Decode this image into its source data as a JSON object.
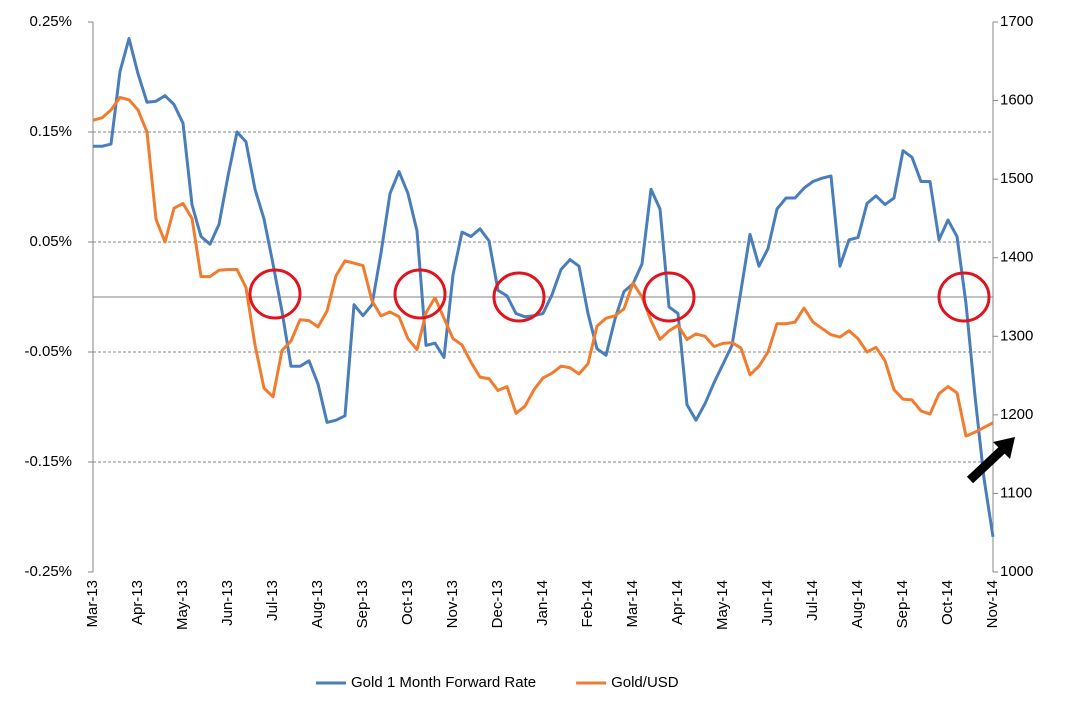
{
  "chart_data": {
    "type": "line",
    "categories": [
      "Mar-13",
      null,
      null,
      null,
      null,
      "Apr-13",
      null,
      null,
      null,
      null,
      "May-13",
      null,
      null,
      null,
      null,
      "Jun-13",
      null,
      null,
      null,
      null,
      "Jul-13",
      null,
      null,
      null,
      null,
      "Aug-13",
      null,
      null,
      null,
      null,
      "Sep-13",
      null,
      null,
      null,
      null,
      "Oct-13",
      null,
      null,
      null,
      null,
      "Nov-13",
      null,
      null,
      null,
      null,
      "Dec-13",
      null,
      null,
      null,
      null,
      "Jan-14",
      null,
      null,
      null,
      null,
      "Feb-14",
      null,
      null,
      null,
      null,
      "Mar-14",
      null,
      null,
      null,
      null,
      "Apr-14",
      null,
      null,
      null,
      null,
      "May-14",
      null,
      null,
      null,
      null,
      "Jun-14",
      null,
      null,
      null,
      null,
      "Jul-14",
      null,
      null,
      null,
      null,
      "Aug-14",
      null,
      null,
      null,
      null,
      "Sep-14",
      null,
      null,
      null,
      null,
      "Oct-14",
      null,
      null,
      null,
      null,
      "Nov-14"
    ],
    "series": [
      {
        "name": "Gold 1 Month Forward Rate",
        "color": "#4a7ebb",
        "values": [
          0.137,
          0.137,
          0.139,
          0.205,
          0.235,
          0.203,
          0.177,
          0.178,
          0.183,
          0.175,
          0.158,
          0.084,
          0.055,
          0.048,
          0.066,
          0.11,
          0.15,
          0.141,
          0.098,
          0.071,
          0.03,
          -0.013,
          -0.063,
          -0.063,
          -0.058,
          -0.079,
          -0.114,
          -0.112,
          -0.108,
          -0.007,
          -0.017,
          -0.007,
          0.04,
          0.094,
          0.114,
          0.094,
          0.06,
          -0.044,
          -0.042,
          -0.055,
          0.02,
          0.059,
          0.055,
          0.062,
          0.051,
          0.006,
          0.001,
          -0.015,
          -0.018,
          -0.017,
          -0.015,
          0.002,
          0.025,
          0.034,
          0.028,
          -0.015,
          -0.047,
          -0.053,
          -0.02,
          0.005,
          0.012,
          0.03,
          0.098,
          0.08,
          -0.009,
          -0.015,
          -0.098,
          -0.112,
          -0.097,
          -0.078,
          -0.061,
          -0.044,
          0.006,
          0.057,
          0.028,
          0.044,
          0.08,
          0.09,
          0.09,
          0.099,
          0.105,
          0.108,
          0.11,
          0.028,
          0.052,
          0.054,
          0.085,
          0.092,
          0.084,
          0.09,
          0.133,
          0.127,
          0.105,
          0.105,
          0.052,
          0.07,
          0.055,
          -0.006,
          -0.09,
          -0.165,
          -0.218
        ]
      },
      {
        "name": "Gold/USD",
        "color": "#f07d2f",
        "axis": "y2",
        "values": [
          1575,
          1578,
          1588,
          1604,
          1601,
          1588,
          1560,
          1449,
          1420,
          1463,
          1469,
          1450,
          1376,
          1376,
          1384,
          1385,
          1385,
          1362,
          1289,
          1234,
          1223,
          1282,
          1294,
          1321,
          1320,
          1312,
          1332,
          1377,
          1396,
          1393,
          1390,
          1345,
          1326,
          1331,
          1325,
          1297,
          1283,
          1330,
          1349,
          1323,
          1297,
          1289,
          1267,
          1248,
          1246,
          1231,
          1236,
          1202,
          1211,
          1232,
          1247,
          1253,
          1262,
          1260,
          1252,
          1265,
          1313,
          1323,
          1326,
          1335,
          1368,
          1350,
          1320,
          1296,
          1307,
          1314,
          1296,
          1303,
          1300,
          1287,
          1291,
          1292,
          1285,
          1251,
          1262,
          1280,
          1316,
          1316,
          1318,
          1336,
          1318,
          1310,
          1302,
          1299,
          1307,
          1297,
          1280,
          1286,
          1269,
          1232,
          1220,
          1219,
          1205,
          1201,
          1227,
          1236,
          1228,
          1173,
          1178,
          1184,
          1190
        ]
      }
    ],
    "ylim": [
      -0.25,
      0.25
    ],
    "yticks": [
      {
        "value": -0.25,
        "label": "-0.25%"
      },
      {
        "value": -0.15,
        "label": "-0.15%"
      },
      {
        "value": -0.05,
        "label": "-0.05%"
      },
      {
        "value": 0.05,
        "label": "0.05%"
      },
      {
        "value": 0.15,
        "label": "0.15%"
      },
      {
        "value": 0.25,
        "label": "0.25%"
      }
    ],
    "y2lim": [
      1000,
      1700
    ],
    "y2ticks": [
      1000,
      1100,
      1200,
      1300,
      1400,
      1500,
      1600,
      1700
    ],
    "grid": true,
    "legend": "bottom"
  }
}
